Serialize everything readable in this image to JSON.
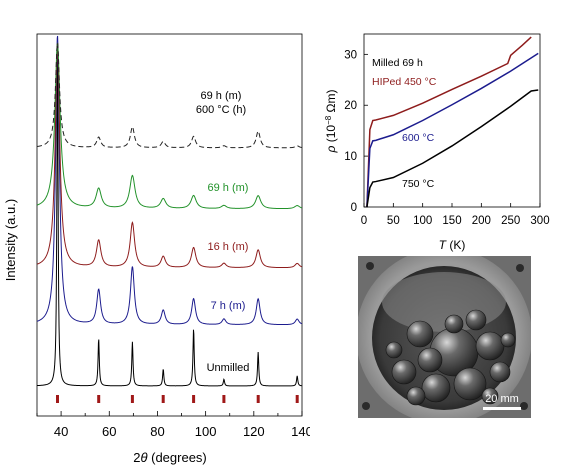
{
  "chart_data": [
    {
      "type": "line",
      "xlabel": "2θ (degrees)",
      "ylabel": "Intensity (a.u.)",
      "xlim": [
        30,
        140
      ],
      "xticks": [
        40,
        60,
        80,
        100,
        120,
        140
      ],
      "grid": false,
      "legend": "none",
      "peaks": [
        38.5,
        55.6,
        69.6,
        82.4,
        95.0,
        107.6,
        121.8,
        138.0
      ],
      "reference_ticks": {
        "x": [
          38.5,
          55.6,
          69.6,
          82.4,
          95.0,
          107.6,
          121.8,
          138.0
        ],
        "color": "#a01818"
      },
      "series": [
        {
          "label": "Unmilled",
          "color": "#000000",
          "dash": "",
          "level": 0,
          "baseline": 0.0,
          "heights": [
            1.0,
            0.14,
            0.13,
            0.05,
            0.17,
            0.02,
            0.1,
            0.03
          ],
          "width": 0.3
        },
        {
          "label": "7 h (m)",
          "color": "#1c1c8e",
          "dash": "",
          "level": 1,
          "baseline": 0.0,
          "heights": [
            1.0,
            0.12,
            0.2,
            0.05,
            0.09,
            0.02,
            0.09,
            0.02
          ],
          "width": 0.95
        },
        {
          "label": "16 h (m)",
          "color": "#8e1c1c",
          "dash": "",
          "level": 2,
          "baseline": 0.0,
          "heights": [
            1.0,
            0.12,
            0.2,
            0.05,
            0.09,
            0.02,
            0.08,
            0.02
          ],
          "width": 1.1
        },
        {
          "label": "69 h (m)",
          "color": "#22922a",
          "dash": "",
          "level": 3,
          "baseline": 0.0,
          "heights": [
            1.0,
            0.12,
            0.2,
            0.06,
            0.08,
            0.02,
            0.08,
            0.02
          ],
          "width": 1.3
        },
        {
          "label_lines": [
            "69 h (m)",
            "600 °C (h)"
          ],
          "color": "#222222",
          "dash": "5,3",
          "level": 4,
          "baseline": 0.0,
          "heights": [
            1.0,
            0.1,
            0.2,
            0.06,
            0.11,
            0.02,
            0.16,
            0.02
          ],
          "width": 1.0
        }
      ]
    },
    {
      "type": "line",
      "xlabel": "T (K)",
      "ylabel": "ρ (10⁻⁸ Ωm)",
      "xlim": [
        0,
        300
      ],
      "ylim": [
        0,
        34
      ],
      "xticks": [
        0,
        50,
        100,
        150,
        200,
        250,
        300
      ],
      "yticks": [
        0,
        10,
        20,
        30
      ],
      "grid": false,
      "legend_title": "Milled 69 h",
      "series": [
        {
          "label": "HIPed 450 °C",
          "color": "#8e1c1c",
          "x": [
            5,
            10,
            15,
            20,
            50,
            100,
            150,
            200,
            245,
            250,
            270,
            285
          ],
          "y": [
            0,
            15.2,
            17.0,
            17.1,
            18.0,
            20.4,
            23.1,
            25.7,
            28.2,
            29.8,
            31.8,
            33.4
          ]
        },
        {
          "label": "600 °C",
          "color": "#1c1c8e",
          "x": [
            5,
            10,
            15,
            20,
            50,
            100,
            150,
            200,
            250,
            297
          ],
          "y": [
            0,
            11.5,
            13.0,
            13.1,
            14.2,
            17.0,
            20.1,
            23.3,
            26.7,
            30.2
          ]
        },
        {
          "label": "750 °C",
          "color": "#000000",
          "x": [
            5,
            10,
            15,
            20,
            50,
            100,
            150,
            200,
            250,
            285,
            297
          ],
          "y": [
            0,
            3.8,
            4.9,
            5.0,
            5.8,
            8.6,
            12.0,
            15.8,
            19.8,
            22.8,
            23.0
          ]
        }
      ]
    }
  ],
  "photo": {
    "scale_bar_label": "20 mm"
  }
}
